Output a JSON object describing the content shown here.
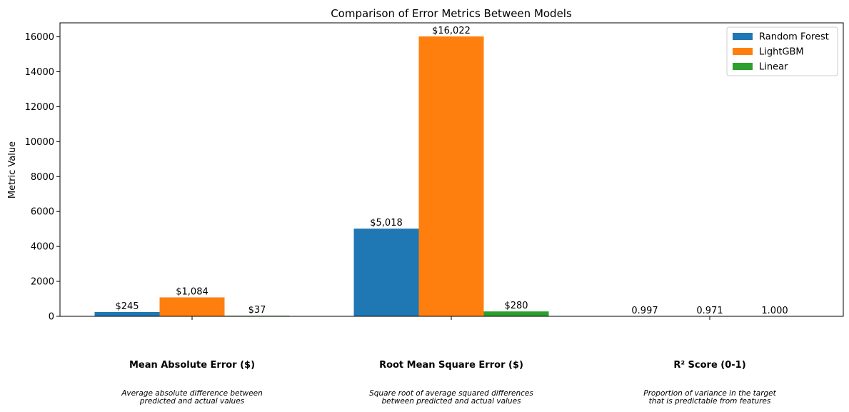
{
  "chart_data": {
    "type": "bar",
    "title": "Comparison of Error Metrics Between Models",
    "xlabel": "",
    "ylabel": "Metric Value",
    "ylim": [
      0,
      16800
    ],
    "yticks": [
      0,
      2000,
      4000,
      6000,
      8000,
      10000,
      12000,
      14000,
      16000
    ],
    "ytick_labels": [
      "0",
      "2000",
      "4000",
      "6000",
      "8000",
      "10000",
      "12000",
      "14000",
      "16000"
    ],
    "grid": false,
    "legend_position": "top-right",
    "categories": [
      "Mean Absolute Error ($)",
      "Root Mean Square Error ($)",
      "R² Score (0-1)"
    ],
    "category_descriptions": [
      [
        "Average absolute difference between",
        "predicted and actual values"
      ],
      [
        "Square root of average squared differences",
        "between predicted and actual values"
      ],
      [
        "Proportion of variance in the target",
        "that is predictable from features"
      ]
    ],
    "series": [
      {
        "name": "Random Forest",
        "color": "#1f77b4",
        "values": [
          245,
          5018,
          0.997
        ],
        "labels": [
          "$245",
          "$5,018",
          "0.997"
        ]
      },
      {
        "name": "LightGBM",
        "color": "#ff7f0e",
        "values": [
          1084,
          16022,
          0.971
        ],
        "labels": [
          "$1,084",
          "$16,022",
          "0.971"
        ]
      },
      {
        "name": "Linear",
        "color": "#2ca02c",
        "values": [
          37,
          280,
          1.0
        ],
        "labels": [
          "$37",
          "$280",
          "1.000"
        ]
      }
    ]
  }
}
